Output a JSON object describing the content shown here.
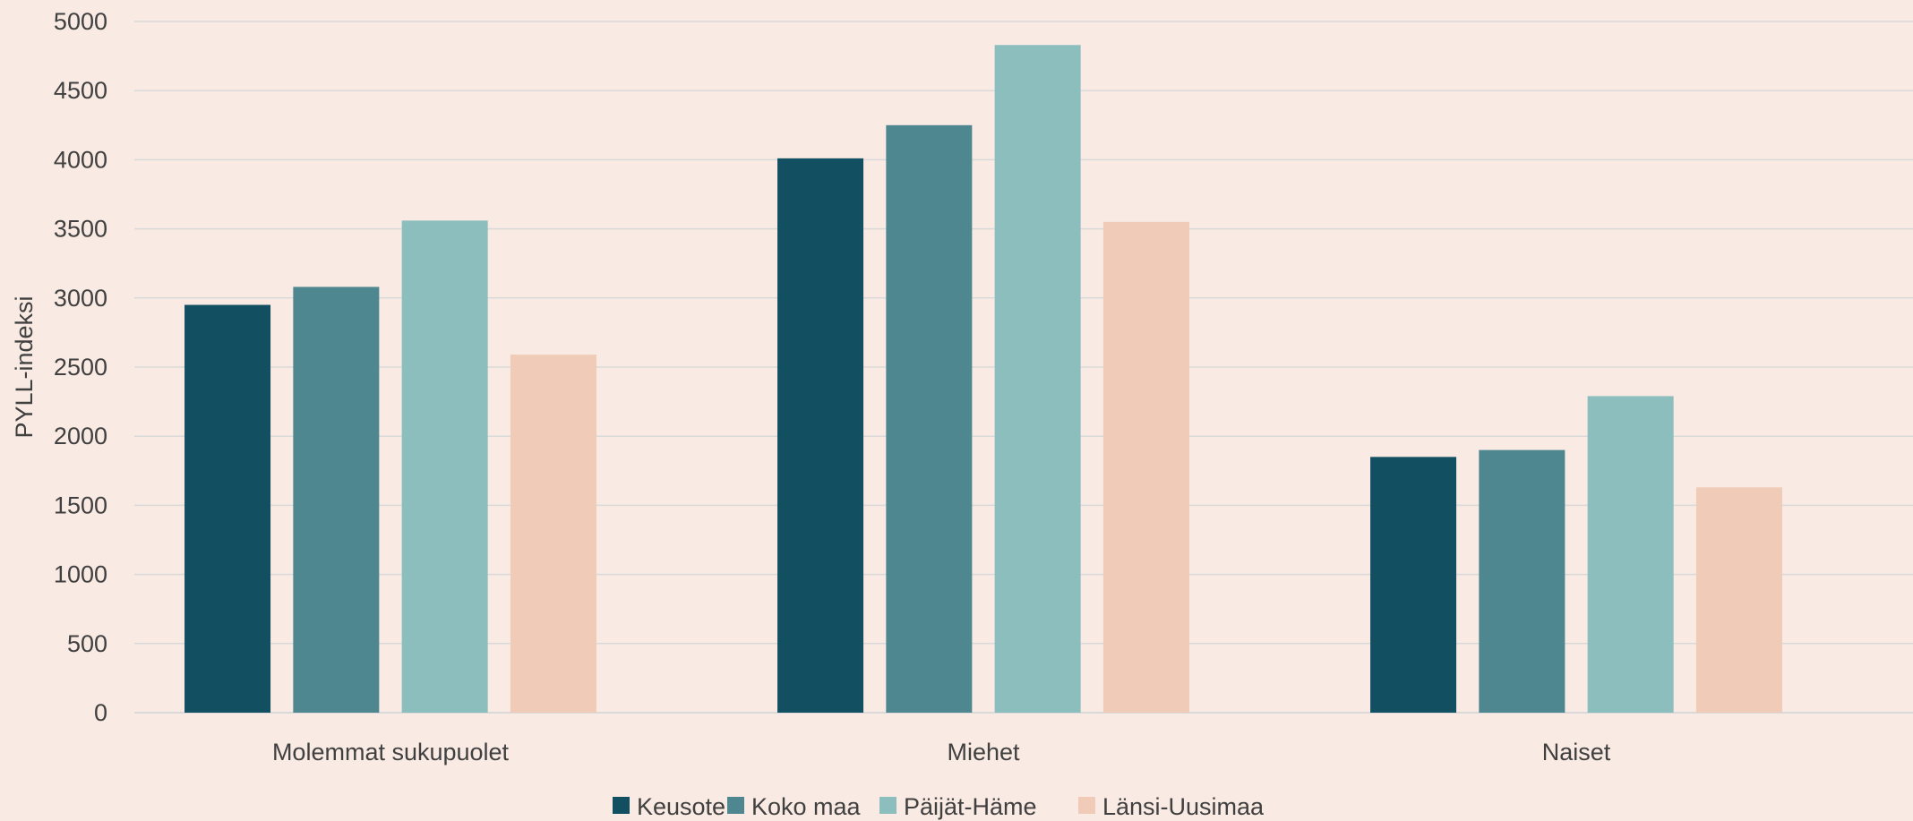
{
  "chart_data": {
    "type": "bar",
    "categories": [
      "Molemmat sukupuolet",
      "Miehet",
      "Naiset"
    ],
    "series": [
      {
        "name": "Keusote",
        "color": "#114f61",
        "values": [
          2950,
          4010,
          1850
        ]
      },
      {
        "name": "Koko maa",
        "color": "#4e8790",
        "values": [
          3080,
          4250,
          1900
        ]
      },
      {
        "name": "Päijät-Häme",
        "color": "#8dbebe",
        "values": [
          3560,
          4830,
          2290
        ]
      },
      {
        "name": "Länsi-Uusimaa",
        "color": "#efcbb8",
        "values": [
          2590,
          3550,
          1630
        ]
      }
    ],
    "title": "",
    "xlabel": "",
    "ylabel": "PYLL-indeksi",
    "ylim": [
      0,
      5000
    ],
    "yticks": [
      "0",
      "500",
      "1000",
      "1500",
      "2000",
      "2500",
      "3000",
      "3500",
      "4000",
      "4500",
      "5000"
    ],
    "grid": true,
    "legend_position": "bottom"
  }
}
